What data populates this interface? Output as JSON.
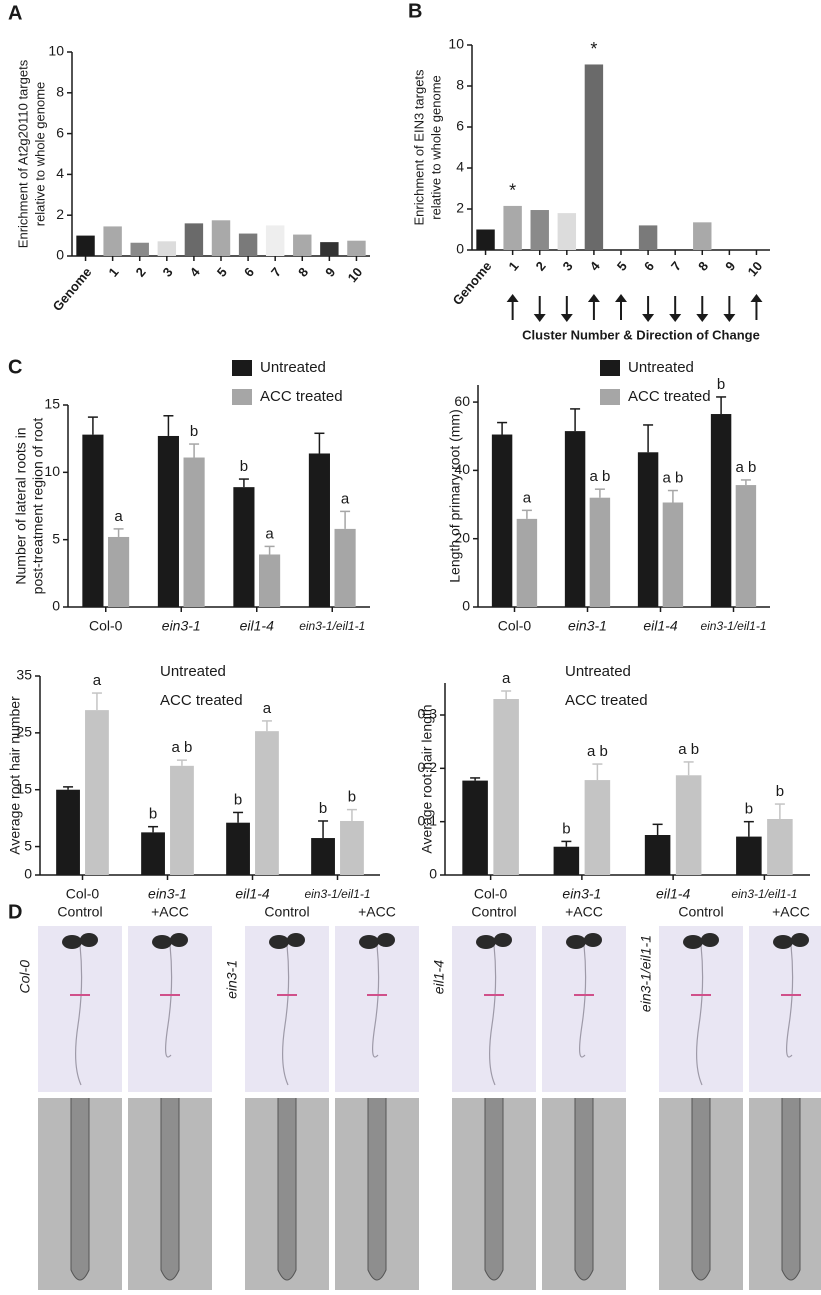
{
  "chart_data": [
    {
      "type": "bar",
      "panel": "A",
      "ylabel": [
        "Enrichment of At2g20110 targets",
        "relative to whole genome"
      ],
      "categories": [
        "Genome",
        "1",
        "2",
        "3",
        "4",
        "5",
        "6",
        "7",
        "8",
        "9",
        "10"
      ],
      "values": [
        1,
        1.45,
        0.65,
        0.72,
        1.6,
        1.75,
        1.1,
        1.5,
        1.05,
        0.68,
        0.75
      ],
      "colors": [
        "#1a1a1a",
        "#a9a9a9",
        "#8a8a8a",
        "#dcdcdc",
        "#6a6a6a",
        "#a9a9a9",
        "#7a7a7a",
        "#eeeeee",
        "#a9a9a9",
        "#333333",
        "#a9a9a9"
      ],
      "ylim": [
        0,
        10
      ],
      "yticks": [
        0,
        2,
        4,
        6,
        8,
        10
      ]
    },
    {
      "type": "bar",
      "panel": "B",
      "ylabel": [
        "Enrichment of EIN3 targets",
        "relative to whole genome"
      ],
      "xlabel": "Cluster Number & Direction of Change",
      "categories": [
        "Genome",
        "1",
        "2",
        "3",
        "4",
        "5",
        "6",
        "7",
        "8",
        "9",
        "10"
      ],
      "values": [
        1,
        2.15,
        1.95,
        1.8,
        9.05,
        0,
        1.2,
        0,
        1.35,
        0,
        0
      ],
      "colors": [
        "#1a1a1a",
        "#a9a9a9",
        "#8a8a8a",
        "#dcdcdc",
        "#6a6a6a",
        "#a9a9a9",
        "#7a7a7a",
        "#eeeeee",
        "#a9a9a9",
        "#333333",
        "#a9a9a9"
      ],
      "annotations": [
        null,
        "*",
        null,
        null,
        "*",
        null,
        null,
        null,
        null,
        null,
        null
      ],
      "directions": [
        null,
        "up",
        "down",
        "down",
        "up",
        "up",
        "down",
        "down",
        "down",
        "down",
        "up"
      ],
      "ylim": [
        0,
        10
      ],
      "yticks": [
        0,
        2,
        4,
        6,
        8,
        10
      ]
    },
    {
      "type": "bar",
      "panel": "C",
      "ylabel": [
        "Number of lateral roots in",
        "post-treatment region of root"
      ],
      "categories": [
        "Col-0",
        "ein3-1",
        "eil1-4",
        "ein3-1/eil1-1"
      ],
      "legend_swatches": true,
      "series": [
        {
          "name": "Untreated",
          "color": "#1a1a1a",
          "values": [
            12.8,
            12.7,
            8.9,
            11.4
          ],
          "errors": [
            1.3,
            1.5,
            0.6,
            1.5
          ],
          "annotations": [
            null,
            null,
            "b",
            null
          ]
        },
        {
          "name": "ACC treated",
          "color": "#a6a6a6",
          "values": [
            5.2,
            11.1,
            3.9,
            5.8
          ],
          "errors": [
            0.6,
            1.0,
            0.6,
            1.3
          ],
          "annotations": [
            "a",
            "b",
            "a",
            "a"
          ]
        }
      ],
      "ylim": [
        0,
        15
      ],
      "yticks": [
        0,
        5,
        10,
        15
      ]
    },
    {
      "type": "bar",
      "ylabel": [
        "Length of primary root (mm)"
      ],
      "categories": [
        "Col-0",
        "ein3-1",
        "eil1-4",
        "ein3-1/eil1-1"
      ],
      "legend_swatches": true,
      "series": [
        {
          "name": "Untreated",
          "color": "#1a1a1a",
          "values": [
            50.5,
            51.5,
            45.3,
            56.5
          ],
          "errors": [
            3.5,
            6.5,
            8,
            5
          ],
          "annotations": [
            null,
            null,
            null,
            "b"
          ]
        },
        {
          "name": "ACC treated",
          "color": "#a6a6a6",
          "values": [
            25.8,
            32,
            30.6,
            35.7
          ],
          "errors": [
            2.5,
            2.5,
            3.5,
            1.5
          ],
          "annotations": [
            "a",
            "a b",
            "a b",
            "a b"
          ]
        }
      ],
      "ylim": [
        0,
        65
      ],
      "yticks": [
        0,
        20,
        40,
        60
      ]
    },
    {
      "type": "bar",
      "ylabel": [
        "Average root hair number"
      ],
      "categories": [
        "Col-0",
        "ein3-1",
        "eil1-4",
        "ein3-1/eil1-1"
      ],
      "legend_swatches": false,
      "series": [
        {
          "name": "Untreated",
          "color": "#1a1a1a",
          "values": [
            15,
            7.5,
            9.2,
            6.5
          ],
          "errors": [
            0.5,
            1,
            1.8,
            3
          ],
          "annotations": [
            null,
            "b",
            "b",
            "b"
          ]
        },
        {
          "name": "ACC treated",
          "color": "#c4c4c4",
          "values": [
            29,
            19.2,
            25.3,
            9.5
          ],
          "errors": [
            3,
            1,
            1.8,
            2
          ],
          "annotations": [
            "a",
            "a b",
            "a",
            "b"
          ]
        }
      ],
      "ylim": [
        0,
        35
      ],
      "yticks": [
        0,
        5,
        15,
        25,
        35
      ]
    },
    {
      "type": "bar",
      "ylabel": [
        "Average root hair length"
      ],
      "categories": [
        "Col-0",
        "ein3-1",
        "eil1-4",
        "ein3-1/eil1-1"
      ],
      "legend_swatches": false,
      "series": [
        {
          "name": "Untreated",
          "color": "#1a1a1a",
          "values": [
            0.177,
            0.053,
            0.075,
            0.072
          ],
          "errors": [
            0.005,
            0.01,
            0.02,
            0.028
          ],
          "annotations": [
            null,
            "b",
            null,
            "b"
          ]
        },
        {
          "name": "ACC treated",
          "color": "#c4c4c4",
          "values": [
            0.33,
            0.178,
            0.187,
            0.105
          ],
          "errors": [
            0.015,
            0.03,
            0.025,
            0.028
          ],
          "annotations": [
            "a",
            "a b",
            "a b",
            "b"
          ]
        }
      ],
      "ylim": [
        0,
        0.36
      ],
      "yticks": [
        0,
        0.1,
        0.2,
        0.3
      ]
    }
  ],
  "panel_d": {
    "label": "D",
    "conditions": [
      "Control",
      "+ACC"
    ],
    "genotypes": [
      "Col-0",
      "ein3-1",
      "eil1-4",
      "ein3-1/eil1-1"
    ]
  }
}
